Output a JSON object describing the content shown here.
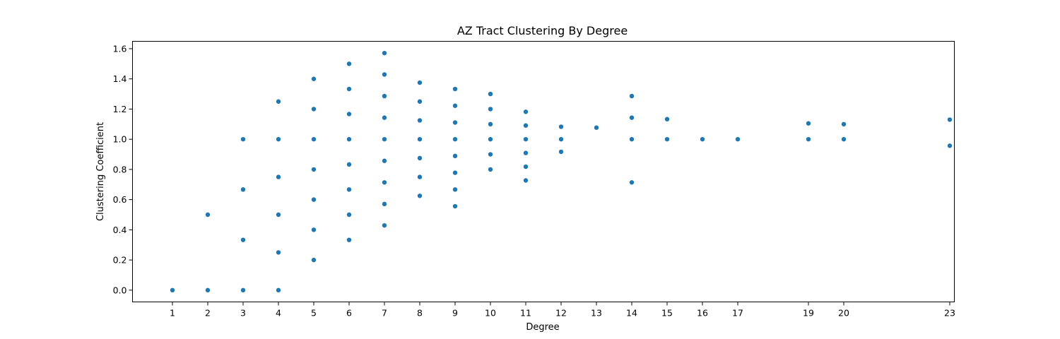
{
  "chart_data": {
    "type": "scatter",
    "title": "AZ Tract Clustering By Degree",
    "xlabel": "Degree",
    "ylabel": "Clustering Coefficient",
    "xlim": [
      -0.13,
      23.13
    ],
    "ylim": [
      -0.078,
      1.649
    ],
    "x_ticks": [
      1,
      2,
      3,
      4,
      5,
      6,
      7,
      8,
      9,
      10,
      11,
      12,
      13,
      14,
      15,
      16,
      17,
      19,
      20,
      23
    ],
    "y_ticks": [
      0.0,
      0.2,
      0.4,
      0.6,
      0.8,
      1.0,
      1.2,
      1.4,
      1.6
    ],
    "y_tick_labels": [
      "0.0",
      "0.2",
      "0.4",
      "0.6",
      "0.8",
      "1.0",
      "1.2",
      "1.4",
      "1.6"
    ],
    "grid": false,
    "marker_color": "#1f77b4",
    "series": [
      {
        "points": [
          [
            1,
            0.0
          ],
          [
            2,
            0.0
          ],
          [
            2,
            0.5
          ],
          [
            3,
            0.0
          ],
          [
            3,
            0.333
          ],
          [
            3,
            0.667
          ],
          [
            3,
            1.0
          ],
          [
            4,
            0.0
          ],
          [
            4,
            0.25
          ],
          [
            4,
            0.5
          ],
          [
            4,
            0.75
          ],
          [
            4,
            1.0
          ],
          [
            4,
            1.25
          ],
          [
            5,
            0.2
          ],
          [
            5,
            0.4
          ],
          [
            5,
            0.6
          ],
          [
            5,
            0.8
          ],
          [
            5,
            1.0
          ],
          [
            5,
            1.2
          ],
          [
            5,
            1.4
          ],
          [
            6,
            0.333
          ],
          [
            6,
            0.5
          ],
          [
            6,
            0.667
          ],
          [
            6,
            0.833
          ],
          [
            6,
            1.0
          ],
          [
            6,
            1.167
          ],
          [
            6,
            1.333
          ],
          [
            6,
            1.5
          ],
          [
            7,
            0.429
          ],
          [
            7,
            0.571
          ],
          [
            7,
            0.714
          ],
          [
            7,
            0.857
          ],
          [
            7,
            1.0
          ],
          [
            7,
            1.143
          ],
          [
            7,
            1.286
          ],
          [
            7,
            1.429
          ],
          [
            7,
            1.571
          ],
          [
            8,
            0.625
          ],
          [
            8,
            0.75
          ],
          [
            8,
            0.875
          ],
          [
            8,
            1.0
          ],
          [
            8,
            1.125
          ],
          [
            8,
            1.25
          ],
          [
            8,
            1.375
          ],
          [
            9,
            0.556
          ],
          [
            9,
            0.667
          ],
          [
            9,
            0.778
          ],
          [
            9,
            0.889
          ],
          [
            9,
            1.0
          ],
          [
            9,
            1.111
          ],
          [
            9,
            1.222
          ],
          [
            9,
            1.333
          ],
          [
            10,
            0.8
          ],
          [
            10,
            0.9
          ],
          [
            10,
            1.0
          ],
          [
            10,
            1.1
          ],
          [
            10,
            1.2
          ],
          [
            10,
            1.3
          ],
          [
            11,
            0.727
          ],
          [
            11,
            0.818
          ],
          [
            11,
            0.909
          ],
          [
            11,
            1.0
          ],
          [
            11,
            1.091
          ],
          [
            11,
            1.182
          ],
          [
            12,
            0.917
          ],
          [
            12,
            1.0
          ],
          [
            12,
            1.083
          ],
          [
            13,
            1.077
          ],
          [
            14,
            0.714
          ],
          [
            14,
            1.0
          ],
          [
            14,
            1.143
          ],
          [
            14,
            1.286
          ],
          [
            15,
            1.0
          ],
          [
            15,
            1.133
          ],
          [
            16,
            1.0
          ],
          [
            17,
            1.0
          ],
          [
            19,
            1.0
          ],
          [
            19,
            1.105
          ],
          [
            20,
            1.0
          ],
          [
            20,
            1.1
          ],
          [
            23,
            0.957
          ],
          [
            23,
            1.13
          ]
        ]
      }
    ]
  }
}
